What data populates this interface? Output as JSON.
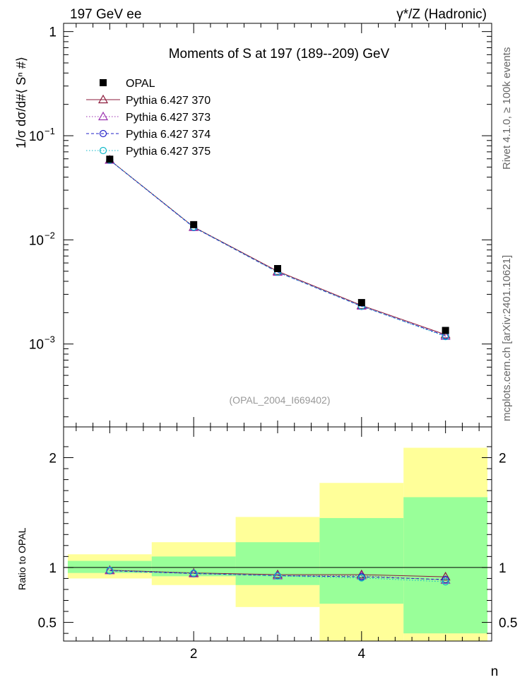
{
  "header": {
    "left": "197 GeV ee",
    "right": "γ*/Z (Hadronic)"
  },
  "side": {
    "rivet": "Rivet 4.1.0, ≥ 100k events",
    "mcplots": "mcplots.cern.ch [arXiv:2401.10621]"
  },
  "chart_data": [
    {
      "type": "line",
      "title": "Moments of S at 197 (189--209) GeV",
      "annotation": "(OPAL_2004_I669402)",
      "ylabel": "1/σ  dσ/d#⟨ Sⁿ #⟩",
      "yscale": "log",
      "ylim": [
        0.00016,
        1.2
      ],
      "xlim": [
        0.45,
        5.55
      ],
      "yticks": [
        {
          "value": 1,
          "label": "1"
        },
        {
          "value": 0.1,
          "label": "10",
          "sup": "−1"
        },
        {
          "value": 0.01,
          "label": "10",
          "sup": "−2"
        },
        {
          "value": 0.001,
          "label": "10",
          "sup": "−3"
        }
      ],
      "x": [
        1,
        2,
        3,
        4,
        5
      ],
      "series": [
        {
          "name": "OPAL",
          "color": "#000000",
          "marker": "square",
          "line": "none",
          "values": [
            0.0595,
            0.014,
            0.0053,
            0.0025,
            0.00135
          ]
        },
        {
          "name": "Pythia 6.427 370",
          "color": "#8b1a3a",
          "marker": "triangle",
          "line": "solid",
          "values": [
            0.0585,
            0.0133,
            0.005,
            0.00235,
            0.00123
          ]
        },
        {
          "name": "Pythia 6.427 373",
          "color": "#9b30b0",
          "marker": "triangle",
          "line": "dotted",
          "values": [
            0.0583,
            0.0132,
            0.0049,
            0.00232,
            0.00119
          ]
        },
        {
          "name": "Pythia 6.427 374",
          "color": "#2020c8",
          "marker": "circle",
          "line": "dashed",
          "values": [
            0.0582,
            0.0132,
            0.0049,
            0.0023,
            0.0012
          ]
        },
        {
          "name": "Pythia 6.427 375",
          "color": "#10b8c8",
          "marker": "circle",
          "line": "dotted",
          "values": [
            0.0584,
            0.0133,
            0.0049,
            0.00231,
            0.00118
          ]
        }
      ],
      "legend": "top-left"
    },
    {
      "type": "line",
      "ylabel": "Ratio to OPAL",
      "xlabel": "n",
      "ylim": [
        0.33,
        2.28
      ],
      "xlim": [
        0.45,
        5.55
      ],
      "xticks": [
        {
          "value": 2,
          "label": "2"
        },
        {
          "value": 4,
          "label": "4"
        }
      ],
      "yticks": [
        {
          "value": 2,
          "label": "2"
        },
        {
          "value": 1,
          "label": "1"
        },
        {
          "value": 0.5,
          "label": "0.5"
        }
      ],
      "reference_line": 1,
      "bands": [
        {
          "x0": 0.5,
          "x1": 1.5,
          "green": [
            0.95,
            1.06
          ],
          "yellow": [
            0.9,
            1.12
          ]
        },
        {
          "x0": 1.5,
          "x1": 2.5,
          "green": [
            0.92,
            1.1
          ],
          "yellow": [
            0.84,
            1.23
          ]
        },
        {
          "x0": 2.5,
          "x1": 3.5,
          "green": [
            0.84,
            1.23
          ],
          "yellow": [
            0.64,
            1.46
          ]
        },
        {
          "x0": 3.5,
          "x1": 4.5,
          "green": [
            0.67,
            1.45
          ],
          "yellow": [
            0.33,
            1.77
          ]
        },
        {
          "x0": 4.5,
          "x1": 5.5,
          "green": [
            0.4,
            1.64
          ],
          "yellow": [
            0.33,
            2.09
          ]
        }
      ],
      "series": [
        {
          "name": "Pythia 6.427 370",
          "values": [
            0.975,
            0.95,
            0.935,
            0.935,
            0.915
          ]
        },
        {
          "name": "Pythia 6.427 373",
          "values": [
            0.972,
            0.944,
            0.925,
            0.925,
            0.885
          ]
        },
        {
          "name": "Pythia 6.427 374",
          "values": [
            0.97,
            0.945,
            0.925,
            0.915,
            0.89
          ]
        },
        {
          "name": "Pythia 6.427 375",
          "values": [
            0.973,
            0.948,
            0.922,
            0.905,
            0.87
          ]
        }
      ]
    }
  ]
}
